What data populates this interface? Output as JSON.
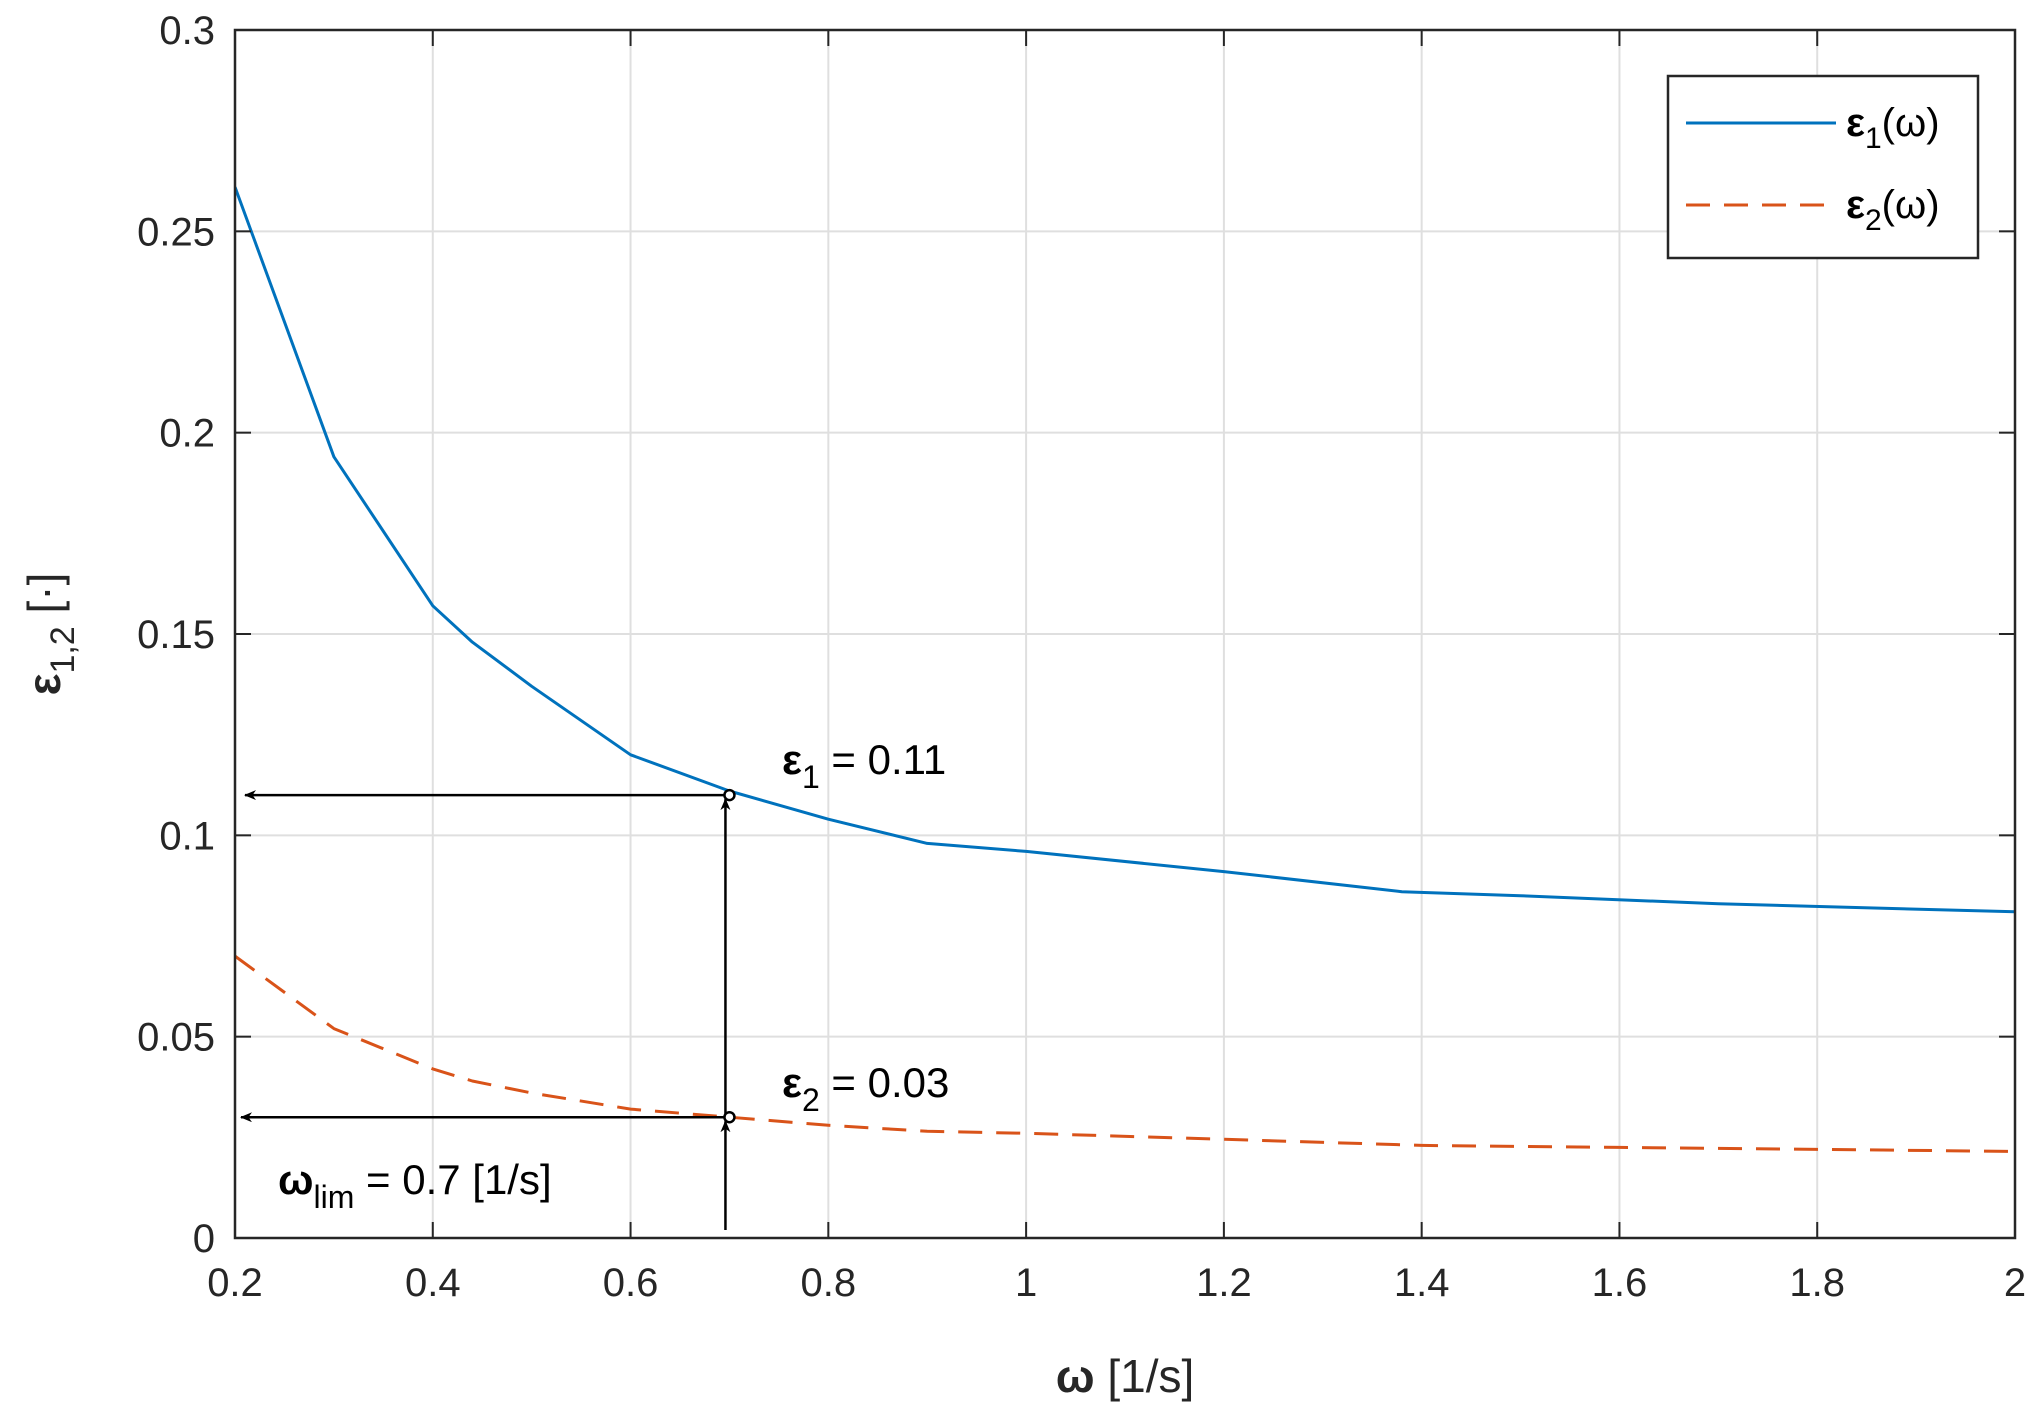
{
  "chart_data": {
    "type": "line",
    "xlabel": {
      "main": "ω",
      "rest": " [1/s]"
    },
    "ylabel": {
      "main": "ε",
      "sub": "1,2",
      "rest": " [·]"
    },
    "xlim": [
      0.2,
      2
    ],
    "ylim": [
      0,
      0.3
    ],
    "xticks": [
      0.2,
      0.4,
      0.6,
      0.8,
      1,
      1.2,
      1.4,
      1.6,
      1.8,
      2
    ],
    "xtick_labels": [
      "0.2",
      "0.4",
      "0.6",
      "0.8",
      "1",
      "1.2",
      "1.4",
      "1.6",
      "1.8",
      "2"
    ],
    "yticks": [
      0,
      0.05,
      0.1,
      0.15,
      0.2,
      0.25,
      0.3
    ],
    "ytick_labels": [
      "0",
      "0.05",
      "0.1",
      "0.15",
      "0.2",
      "0.25",
      "0.3"
    ],
    "grid": true,
    "legend_position": "top-right",
    "series": [
      {
        "name_main": "ε",
        "name_sub": "1",
        "name_rest": "(ω)",
        "color": "#0072BD",
        "style": "solid",
        "x": [
          0.2,
          0.3,
          0.4,
          0.44,
          0.5,
          0.6,
          0.7,
          0.8,
          0.9,
          1.0,
          1.2,
          1.38,
          1.5,
          1.7,
          2.0
        ],
        "y": [
          0.261,
          0.194,
          0.157,
          0.148,
          0.137,
          0.12,
          0.111,
          0.104,
          0.098,
          0.096,
          0.091,
          0.086,
          0.085,
          0.083,
          0.081
        ]
      },
      {
        "name_main": "ε",
        "name_sub": "2",
        "name_rest": "(ω)",
        "color": "#D95319",
        "style": "dashed",
        "x": [
          0.2,
          0.3,
          0.4,
          0.44,
          0.5,
          0.6,
          0.7,
          0.8,
          0.9,
          1.0,
          1.2,
          1.4,
          1.6,
          1.8,
          2.0
        ],
        "y": [
          0.07,
          0.052,
          0.042,
          0.039,
          0.036,
          0.032,
          0.03,
          0.028,
          0.0265,
          0.026,
          0.0245,
          0.023,
          0.0225,
          0.022,
          0.0215
        ]
      }
    ],
    "annotations": {
      "eps1": {
        "main": "ε",
        "sub": "1",
        "rest": " = 0.11",
        "x": 0.7,
        "y": 0.11
      },
      "eps2": {
        "main": "ε",
        "sub": "2",
        "rest": " = 0.03",
        "x": 0.7,
        "y": 0.03
      },
      "omega_lim": {
        "main": "ω",
        "sub": "lim",
        "rest": " = 0.7 [1/s]",
        "x": 0.7
      }
    }
  }
}
